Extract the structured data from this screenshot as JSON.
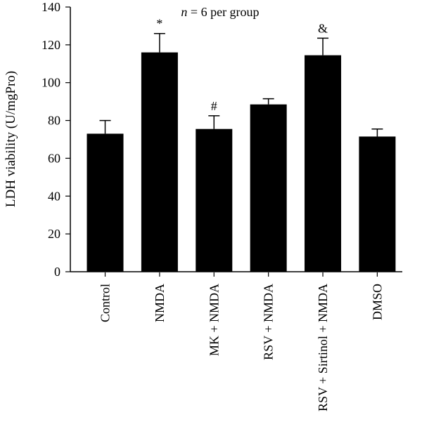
{
  "chart_data": {
    "type": "bar",
    "title": "",
    "annotation": {
      "italic": "n",
      "rest": " = 6 per group"
    },
    "ylabel": "LDH viability (U/mgPro)",
    "xlabel": "",
    "ylim": [
      0,
      140
    ],
    "yticks": [
      0,
      20,
      40,
      60,
      80,
      100,
      120,
      140
    ],
    "grid": false,
    "legend": "none",
    "bar_color": "#000000",
    "categories": [
      "Control",
      "NMDA",
      "MK + NMDA",
      "RSV + NMDA",
      "RSV + Sirtinol + NMDA",
      "DMSO"
    ],
    "values": [
      73,
      116,
      75.5,
      88.5,
      114.5,
      71.5
    ],
    "error_upper": [
      7,
      10,
      7,
      3,
      9,
      4
    ],
    "significance": [
      "",
      "*",
      "#",
      "",
      "&",
      ""
    ]
  }
}
